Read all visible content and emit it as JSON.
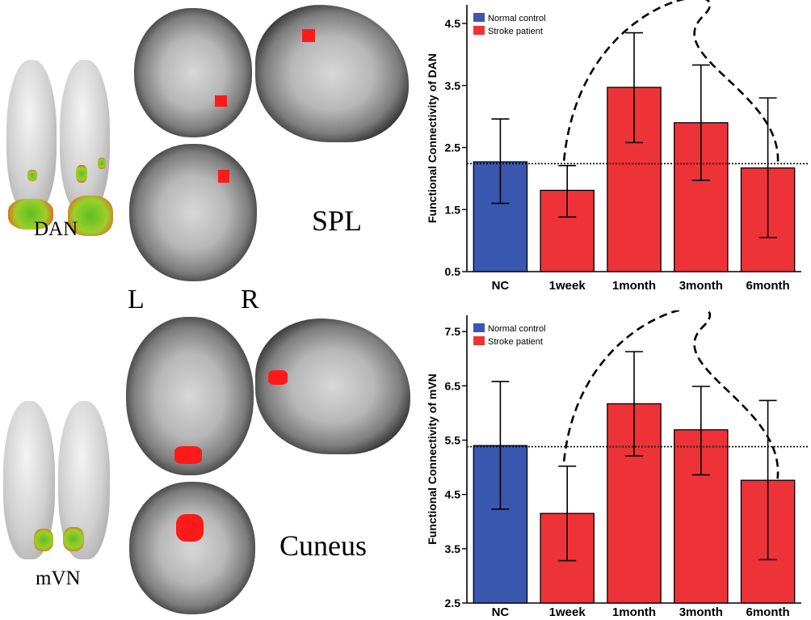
{
  "labels": {
    "dan": "DAN",
    "spl": "SPL",
    "left": "L",
    "right": "R",
    "mvn": "mVN",
    "cuneus": "Cuneus"
  },
  "colors": {
    "normal": "#3a57b0",
    "stroke": "#ee3338",
    "activation": "#ff1a1a"
  },
  "chart_data": [
    {
      "type": "bar",
      "ylabel": "Functional Connectivity of DAN",
      "categories": [
        "NC",
        "1week",
        "1month",
        "3month",
        "6month"
      ],
      "values": [
        2.27,
        1.81,
        3.47,
        2.9,
        2.17
      ],
      "err_low": [
        1.6,
        1.38,
        2.58,
        1.97,
        1.05
      ],
      "err_high": [
        2.96,
        2.21,
        4.35,
        3.83,
        3.3
      ],
      "groups": [
        "normal",
        "stroke",
        "stroke",
        "stroke",
        "stroke"
      ],
      "reference_line": 2.24,
      "ylim": [
        0.5,
        4.8
      ],
      "yticks": [
        "0.5",
        "1.5",
        "2.5",
        "3.5",
        "4.5"
      ],
      "ytick_values": [
        0.5,
        1.5,
        2.5,
        3.5,
        4.5
      ],
      "legend": [
        "Normal control",
        "Stroke patient"
      ]
    },
    {
      "type": "bar",
      "ylabel": "Functional Connectivity of mVN",
      "categories": [
        "NC",
        "1week",
        "1month",
        "3month",
        "6month"
      ],
      "values": [
        5.4,
        4.15,
        6.17,
        5.69,
        4.76
      ],
      "err_low": [
        4.23,
        3.28,
        5.21,
        4.86,
        3.3
      ],
      "err_high": [
        6.58,
        5.02,
        7.13,
        6.49,
        6.23
      ],
      "groups": [
        "normal",
        "stroke",
        "stroke",
        "stroke",
        "stroke"
      ],
      "reference_line": 5.38,
      "ylim": [
        2.5,
        7.8
      ],
      "yticks": [
        "2.5",
        "3.5",
        "4.5",
        "5.5",
        "6.5",
        "7.5"
      ],
      "ytick_values": [
        2.5,
        3.5,
        4.5,
        5.5,
        6.5,
        7.5
      ],
      "legend": [
        "Normal control",
        "Stroke patient"
      ]
    }
  ]
}
